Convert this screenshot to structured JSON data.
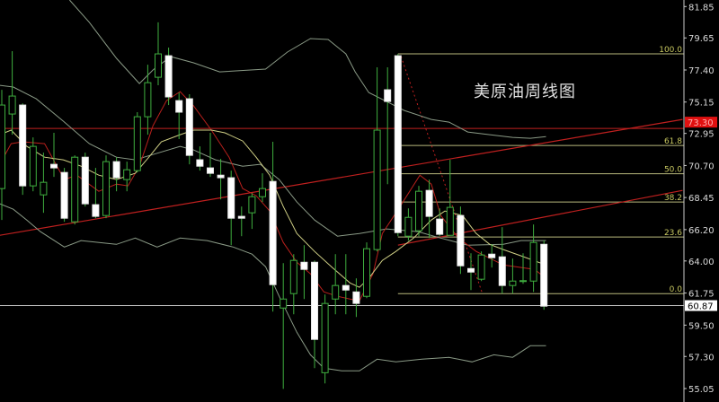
{
  "chart_data": {
    "type": "candlestick",
    "title": "美原油周线图",
    "ylim": [
      55.05,
      81.85
    ],
    "y_ticks": [
      "81.85",
      "79.65",
      "77.40",
      "75.15",
      "72.95",
      "70.70",
      "68.45",
      "66.20",
      "64.00",
      "61.75",
      "59.50",
      "57.30",
      "55.05"
    ],
    "grid": false,
    "candles": [
      [
        69.08,
        76.01,
        66.88,
        74.94
      ],
      [
        74.31,
        78.72,
        72.86,
        75.57
      ],
      [
        74.94,
        75.06,
        68.64,
        69.27
      ],
      [
        69.27,
        72.67,
        68.89,
        72.04
      ],
      [
        68.64,
        71.6,
        67.38,
        69.52
      ],
      [
        70.78,
        72.99,
        69.9,
        70.53
      ],
      [
        70.21,
        70.53,
        66.75,
        67.0
      ],
      [
        66.75,
        71.41,
        66.56,
        71.28
      ],
      [
        71.28,
        71.6,
        67.82,
        68.01
      ],
      [
        67.95,
        70.53,
        67.0,
        67.13
      ],
      [
        67.19,
        71.41,
        67.0,
        70.97
      ],
      [
        70.97,
        71.28,
        68.89,
        69.84
      ],
      [
        69.71,
        70.97,
        68.89,
        70.4
      ],
      [
        70.34,
        74.44,
        70.21,
        74.12
      ],
      [
        74.12,
        77.77,
        72.86,
        76.51
      ],
      [
        76.89,
        80.74,
        76.33,
        78.53
      ],
      [
        78.4,
        78.97,
        74.94,
        75.51
      ],
      [
        75.25,
        75.82,
        72.55,
        74.44
      ],
      [
        75.38,
        75.7,
        70.78,
        71.41
      ],
      [
        71.1,
        72.04,
        70.34,
        70.65
      ],
      [
        70.53,
        72.99,
        69.9,
        70.15
      ],
      [
        70.02,
        71.16,
        68.32,
        69.84
      ],
      [
        69.84,
        70.34,
        65.11,
        67.0
      ],
      [
        67.13,
        67.82,
        65.74,
        67.0
      ],
      [
        67.38,
        68.76,
        66.25,
        68.51
      ],
      [
        68.51,
        70.15,
        68.14,
        69.08
      ],
      [
        69.58,
        72.36,
        60.45,
        62.34
      ],
      [
        60.7,
        63.85,
        55.03,
        61.33
      ],
      [
        61.71,
        64.48,
        60.26,
        64.04
      ],
      [
        63.91,
        65.11,
        61.33,
        63.41
      ],
      [
        63.91,
        64.04,
        56.48,
        58.5
      ],
      [
        56.16,
        61.65,
        55.41,
        61.02
      ],
      [
        61.33,
        64.48,
        60.26,
        62.28
      ],
      [
        62.28,
        64.48,
        60.26,
        61.96
      ],
      [
        61.83,
        62.78,
        60.07,
        61.02
      ],
      [
        61.52,
        65.3,
        61.39,
        64.86
      ],
      [
        64.8,
        77.59,
        64.67,
        73.18
      ],
      [
        76.01,
        77.59,
        69.39,
        75.19
      ],
      [
        78.4,
        78.53,
        65.74,
        65.99
      ],
      [
        65.74,
        67.69,
        65.43,
        67.06
      ],
      [
        66.12,
        69.27,
        65.74,
        68.89
      ],
      [
        68.95,
        69.71,
        65.61,
        67.13
      ],
      [
        66.94,
        67.69,
        65.74,
        65.87
      ],
      [
        65.8,
        71.1,
        65.8,
        67.76
      ],
      [
        67.19,
        67.82,
        63.09,
        63.66
      ],
      [
        63.47,
        64.54,
        61.96,
        63.22
      ],
      [
        62.72,
        64.67,
        62.59,
        64.42
      ],
      [
        64.48,
        65.17,
        63.54,
        64.23
      ],
      [
        64.29,
        66.37,
        61.71,
        62.28
      ],
      [
        62.28,
        64.17,
        61.71,
        62.59
      ],
      [
        62.56,
        64.54,
        62.4,
        62.62
      ],
      [
        62.59,
        66.56,
        61.83,
        65.3
      ],
      [
        65.17,
        65.43,
        60.58,
        60.83
      ]
    ],
    "candle_fields": [
      "open",
      "high",
      "low",
      "close"
    ],
    "lines": {
      "bollinger_upper": [
        [
          7.5,
          82.31
        ],
        [
          9.4,
          80.74
        ],
        [
          12.0,
          78.22
        ],
        [
          14.2,
          76.45
        ],
        [
          15.5,
          77.4
        ],
        [
          17.2,
          78.34
        ],
        [
          19.4,
          77.9
        ],
        [
          21.9,
          77.27
        ],
        [
          26.3,
          77.46
        ],
        [
          28.4,
          78.66
        ],
        [
          30.6,
          79.6
        ],
        [
          32.3,
          79.54
        ],
        [
          34.0,
          78.53
        ],
        [
          34.9,
          77.27
        ],
        [
          36.2,
          75.82
        ],
        [
          37.9,
          75.19
        ],
        [
          39.6,
          74.56
        ],
        [
          42.2,
          73.93
        ],
        [
          43.9,
          73.74
        ],
        [
          45.7,
          73.05
        ],
        [
          47.8,
          72.86
        ],
        [
          50.0,
          72.67
        ],
        [
          51.7,
          72.61
        ],
        [
          53.2,
          72.73
        ]
      ],
      "bollinger_middle": [
        [
          0.8,
          76.32
        ],
        [
          2.1,
          76.2
        ],
        [
          4.3,
          75.38
        ],
        [
          6.9,
          73.81
        ],
        [
          9.4,
          72.23
        ],
        [
          12.0,
          71.28
        ],
        [
          13.8,
          71.1
        ],
        [
          15.5,
          71.47
        ],
        [
          18.1,
          72.04
        ],
        [
          19.4,
          71.79
        ],
        [
          21.5,
          71.1
        ],
        [
          24.1,
          70.65
        ],
        [
          25.8,
          70.78
        ],
        [
          27.6,
          69.71
        ],
        [
          29.3,
          68.14
        ],
        [
          31.0,
          66.87
        ],
        [
          33.2,
          65.74
        ],
        [
          35.3,
          65.93
        ],
        [
          37.9,
          66.25
        ],
        [
          40.9,
          66.06
        ],
        [
          43.1,
          65.61
        ],
        [
          45.7,
          65.11
        ],
        [
          49.1,
          65.17
        ],
        [
          50.8,
          65.43
        ],
        [
          53.2,
          65.43
        ]
      ],
      "bollinger_lower": [
        [
          0.8,
          68.01
        ],
        [
          2.1,
          67.63
        ],
        [
          3.4,
          66.87
        ],
        [
          4.7,
          66.06
        ],
        [
          7.0,
          64.98
        ],
        [
          8.6,
          65.43
        ],
        [
          12.0,
          65.17
        ],
        [
          13.8,
          65.61
        ],
        [
          15.9,
          64.98
        ],
        [
          18.1,
          65.61
        ],
        [
          20.7,
          65.43
        ],
        [
          23.2,
          64.98
        ],
        [
          25.0,
          64.48
        ],
        [
          26.3,
          63.6
        ],
        [
          27.6,
          61.52
        ],
        [
          29.3,
          59.0
        ],
        [
          30.6,
          57.42
        ],
        [
          31.9,
          56.48
        ],
        [
          33.6,
          56.29
        ],
        [
          35.3,
          56.29
        ],
        [
          37.0,
          57.11
        ],
        [
          38.8,
          56.92
        ],
        [
          41.3,
          57.11
        ],
        [
          43.9,
          57.24
        ],
        [
          46.1,
          56.92
        ],
        [
          48.2,
          57.42
        ],
        [
          50.0,
          57.24
        ],
        [
          51.7,
          58.05
        ],
        [
          53.2,
          58.05
        ]
      ],
      "ma_red": [
        [
          0.8,
          70.78
        ],
        [
          1.9,
          72.23
        ],
        [
          3.0,
          72.36
        ],
        [
          5.1,
          72.23
        ],
        [
          7.0,
          69.71
        ],
        [
          8.2,
          70.02
        ],
        [
          10.3,
          68.89
        ],
        [
          12.0,
          69.39
        ],
        [
          13.1,
          69.27
        ],
        [
          14.2,
          70.65
        ],
        [
          15.5,
          73.49
        ],
        [
          16.8,
          75.25
        ],
        [
          18.1,
          75.88
        ],
        [
          19.4,
          74.88
        ],
        [
          21.1,
          73.18
        ],
        [
          22.8,
          71.28
        ],
        [
          24.1,
          69.08
        ],
        [
          25.4,
          68.58
        ],
        [
          26.7,
          67.5
        ],
        [
          28.0,
          65.3
        ],
        [
          29.3,
          63.91
        ],
        [
          30.6,
          63.1
        ],
        [
          31.9,
          61.83
        ],
        [
          33.2,
          61.52
        ],
        [
          34.4,
          61.33
        ],
        [
          35.3,
          61.21
        ],
        [
          36.6,
          63.1
        ],
        [
          37.5,
          65.93
        ],
        [
          39.2,
          67.82
        ],
        [
          41.1,
          70.02
        ],
        [
          42.2,
          69.39
        ],
        [
          43.1,
          67.19
        ],
        [
          44.8,
          65.61
        ],
        [
          46.5,
          64.67
        ],
        [
          49.1,
          63.72
        ],
        [
          52.1,
          63.41
        ],
        [
          53.2,
          62.78
        ]
      ],
      "ma_yellow": [
        [
          0.8,
          72.86
        ],
        [
          1.9,
          73.18
        ],
        [
          3.4,
          72.04
        ],
        [
          5.1,
          71.28
        ],
        [
          6.9,
          71.1
        ],
        [
          8.6,
          70.65
        ],
        [
          10.3,
          70.02
        ],
        [
          12.0,
          69.71
        ],
        [
          13.8,
          70.15
        ],
        [
          15.1,
          71.28
        ],
        [
          16.3,
          72.36
        ],
        [
          18.1,
          72.86
        ],
        [
          19.4,
          73.18
        ],
        [
          21.1,
          73.18
        ],
        [
          22.4,
          72.99
        ],
        [
          24.1,
          72.42
        ],
        [
          25.4,
          71.28
        ],
        [
          26.7,
          70.02
        ],
        [
          28.0,
          67.82
        ],
        [
          29.3,
          65.93
        ],
        [
          31.0,
          64.67
        ],
        [
          32.7,
          63.54
        ],
        [
          34.4,
          62.46
        ],
        [
          35.3,
          62.15
        ],
        [
          36.2,
          62.78
        ],
        [
          37.5,
          64.04
        ],
        [
          38.8,
          64.67
        ],
        [
          40.5,
          65.61
        ],
        [
          42.2,
          66.87
        ],
        [
          43.5,
          67.5
        ],
        [
          45.2,
          67.19
        ],
        [
          46.5,
          65.93
        ],
        [
          47.8,
          65.17
        ],
        [
          49.1,
          64.8
        ],
        [
          50.8,
          64.36
        ],
        [
          53.2,
          63.72
        ]
      ]
    },
    "trendlines": [
      {
        "from": [
          0.8,
          65.8
        ],
        "to": [
          66.3,
          73.93
        ]
      },
      {
        "from": [
          39.0,
          65.11
        ],
        "to": [
          66.3,
          68.95
        ]
      }
    ],
    "dashed_line": {
      "from": [
        39.3,
        78.34
      ],
      "to": [
        47.1,
        61.71
      ]
    },
    "horizontal_red": {
      "price": 73.3,
      "label": "73.30"
    },
    "current_price": {
      "price": 60.87,
      "label": "60.87"
    },
    "fibonacci": {
      "start_index": 39,
      "high": 78.53,
      "low": 61.71,
      "levels": [
        {
          "label": "100.0",
          "price": 78.53
        },
        {
          "label": "61.8",
          "price": 72.1
        },
        {
          "label": "50.0",
          "price": 70.12
        },
        {
          "label": "38.2",
          "price": 68.14
        },
        {
          "label": "23.6",
          "price": 65.68
        },
        {
          "label": "0.0",
          "price": 61.71
        }
      ]
    },
    "colors": {
      "background": "#000000",
      "up_candle": "#3fae3f",
      "down_candle": "#ffffff",
      "wick": "#3fae3f",
      "bands": "#8a9a86",
      "ma_red": "#b8201c",
      "ma_yellow": "#cfcf85",
      "fib": "#b8b87c",
      "red_line": "#c0201f",
      "axis": "#c8c8c8"
    }
  }
}
